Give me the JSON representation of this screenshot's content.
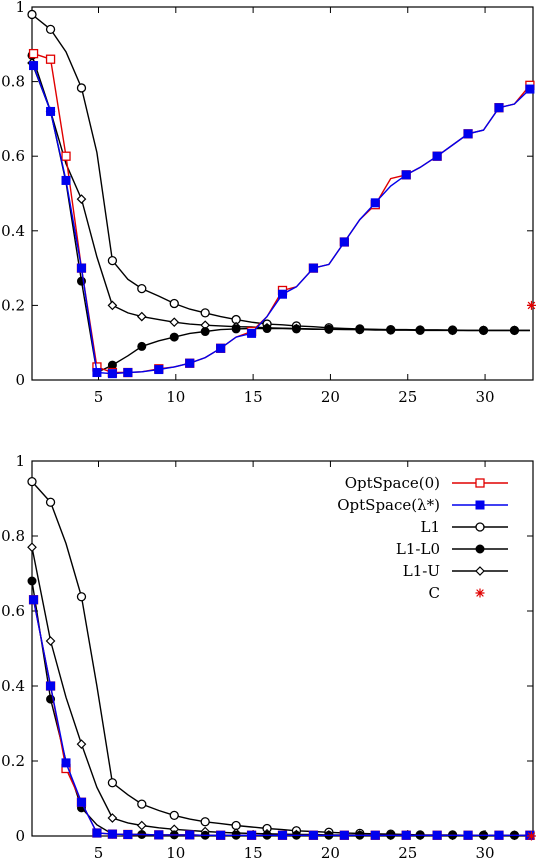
{
  "chart_data": [
    {
      "type": "line",
      "title": "",
      "xlabel": "",
      "ylabel": "",
      "xlim": [
        0.7,
        33.1
      ],
      "ylim": [
        0,
        1
      ],
      "xticks": [
        "5",
        "10",
        "15",
        "20",
        "25",
        "30"
      ],
      "yticks": [
        "0",
        "0.2",
        "0.4",
        "0.6",
        "0.8",
        "1"
      ],
      "legend": false,
      "series": [
        {
          "key": "optspace0",
          "color": "#e00000",
          "marker": "open-square",
          "x": [
            0.8,
            1.9,
            2.9,
            3.9,
            4.9,
            5.9,
            6.9,
            7.8,
            8.9,
            9.9,
            10.9,
            11.9,
            12.9,
            13.9,
            14.9,
            15.9,
            16.9,
            17.8,
            18.9,
            19.9,
            20.9,
            21.9,
            22.9,
            23.9,
            24.9,
            25.8,
            26.9,
            27.9,
            28.9,
            29.9,
            30.9,
            31.9,
            32.9
          ],
          "y": [
            0.875,
            0.86,
            0.6,
            0.3,
            0.035,
            0.02,
            0.02,
            0.022,
            0.03,
            0.035,
            0.045,
            0.06,
            0.085,
            0.115,
            0.13,
            0.17,
            0.24,
            0.25,
            0.3,
            0.31,
            0.37,
            0.43,
            0.47,
            0.54,
            0.55,
            0.57,
            0.6,
            0.63,
            0.66,
            0.67,
            0.73,
            0.74,
            0.79
          ]
        },
        {
          "key": "optspace_lambda",
          "color": "#0000ee",
          "marker": "filled-square",
          "x": [
            0.8,
            1.9,
            2.9,
            3.9,
            4.9,
            5.9,
            6.9,
            7.8,
            8.9,
            9.9,
            10.9,
            11.9,
            12.9,
            13.9,
            14.9,
            15.9,
            16.9,
            17.8,
            18.9,
            19.9,
            20.9,
            21.9,
            22.9,
            23.9,
            24.9,
            25.8,
            26.9,
            27.9,
            28.9,
            29.9,
            30.9,
            31.9,
            32.9
          ],
          "y": [
            0.843,
            0.72,
            0.535,
            0.3,
            0.02,
            0.017,
            0.02,
            0.022,
            0.028,
            0.035,
            0.045,
            0.06,
            0.085,
            0.115,
            0.125,
            0.17,
            0.23,
            0.25,
            0.3,
            0.31,
            0.37,
            0.43,
            0.475,
            0.52,
            0.55,
            0.57,
            0.6,
            0.63,
            0.66,
            0.67,
            0.73,
            0.74,
            0.78
          ]
        },
        {
          "key": "l1",
          "color": "#000000",
          "marker": "open-circle",
          "x": [
            0.7,
            1.9,
            2.9,
            3.9,
            4.9,
            5.9,
            6.9,
            7.8,
            8.9,
            9.9,
            10.9,
            11.9,
            12.9,
            13.9,
            14.9,
            15.9,
            16.9,
            17.8,
            18.9,
            19.9,
            20.9,
            21.9,
            22.9,
            23.9,
            24.9,
            25.8,
            26.9,
            27.9,
            28.9,
            29.9,
            30.9,
            31.9,
            32.9
          ],
          "y": [
            0.98,
            0.94,
            0.88,
            0.783,
            0.61,
            0.32,
            0.27,
            0.245,
            0.225,
            0.205,
            0.19,
            0.18,
            0.17,
            0.162,
            0.155,
            0.15,
            0.148,
            0.145,
            0.143,
            0.14,
            0.138,
            0.137,
            0.136,
            0.135,
            0.135,
            0.134,
            0.134,
            0.134,
            0.133,
            0.133,
            0.133,
            0.133,
            0.133
          ]
        },
        {
          "key": "l1_l0",
          "color": "#000000",
          "marker": "filled-circle",
          "x": [
            0.7,
            1.9,
            2.9,
            3.9,
            4.9,
            5.9,
            6.9,
            7.8,
            8.9,
            9.9,
            10.9,
            11.9,
            12.9,
            13.9,
            14.9,
            15.9,
            16.9,
            17.8,
            18.9,
            19.9,
            20.9,
            21.9,
            22.9,
            23.9,
            24.9,
            25.8,
            26.9,
            27.9,
            28.9,
            29.9,
            30.9,
            31.9,
            32.9
          ],
          "y": [
            0.87,
            0.72,
            0.53,
            0.265,
            0.02,
            0.04,
            0.065,
            0.09,
            0.105,
            0.115,
            0.125,
            0.13,
            0.135,
            0.137,
            0.138,
            0.138,
            0.138,
            0.137,
            0.136,
            0.136,
            0.135,
            0.135,
            0.134,
            0.134,
            0.134,
            0.133,
            0.133,
            0.133,
            0.133,
            0.133,
            0.133,
            0.133,
            0.133
          ]
        },
        {
          "key": "l1_u",
          "color": "#000000",
          "marker": "open-diamond",
          "x": [
            0.7,
            1.9,
            2.9,
            3.9,
            4.9,
            5.9,
            6.9,
            7.8,
            8.9,
            9.9,
            10.9,
            11.9,
            12.9,
            13.9,
            14.9,
            15.9,
            16.9,
            17.8,
            18.9,
            19.9,
            20.9,
            21.9,
            22.9,
            23.9,
            24.9,
            25.8,
            26.9,
            27.9,
            28.9,
            29.9,
            30.9,
            31.9,
            32.9
          ],
          "y": [
            0.85,
            0.72,
            0.58,
            0.485,
            0.33,
            0.2,
            0.18,
            0.17,
            0.162,
            0.155,
            0.15,
            0.147,
            0.145,
            0.143,
            0.142,
            0.14,
            0.139,
            0.138,
            0.137,
            0.136,
            0.136,
            0.135,
            0.135,
            0.134,
            0.134,
            0.134,
            0.134,
            0.133,
            0.133,
            0.133,
            0.133,
            0.133,
            0.133
          ]
        },
        {
          "key": "c",
          "color": "#e00000",
          "marker": "star",
          "x": [
            33.0
          ],
          "y": [
            0.2
          ]
        }
      ]
    },
    {
      "type": "line",
      "title": "",
      "xlabel": "",
      "ylabel": "",
      "xlim": [
        0.7,
        33.1
      ],
      "ylim": [
        0,
        1
      ],
      "xticks": [
        "5",
        "10",
        "15",
        "20",
        "25",
        "30"
      ],
      "yticks": [
        "0",
        "0.2",
        "0.4",
        "0.6",
        "0.8",
        "1"
      ],
      "legend": true,
      "legend_position": "top-right",
      "series": [
        {
          "key": "optspace0",
          "name": "OptSpace(0)",
          "color": "#e00000",
          "marker": "open-square",
          "x": [
            0.8,
            1.9,
            2.9,
            3.9,
            4.9,
            5.9,
            6.9,
            7.8,
            8.9,
            9.9,
            10.9,
            11.9,
            12.9,
            13.9,
            14.9,
            15.9,
            16.9,
            17.8,
            18.9,
            19.9,
            20.9,
            21.9,
            22.9,
            23.9,
            24.9,
            25.8,
            26.9,
            27.9,
            28.9,
            29.9,
            30.9,
            31.9,
            32.9
          ],
          "y": [
            0.63,
            0.4,
            0.18,
            0.09,
            0.008,
            0.005,
            0.004,
            0.004,
            0.003,
            0.003,
            0.003,
            0.002,
            0.002,
            0.002,
            0.002,
            0.002,
            0.002,
            0.002,
            0.002,
            0.002,
            0.002,
            0.002,
            0.002,
            0.002,
            0.002,
            0.002,
            0.002,
            0.002,
            0.002,
            0.002,
            0.002,
            0.002,
            0.002
          ]
        },
        {
          "key": "optspace_lambda",
          "name": "OptSpace(λ*)",
          "color": "#0000ee",
          "marker": "filled-square",
          "x": [
            0.8,
            1.9,
            2.9,
            3.9,
            4.9,
            5.9,
            6.9,
            7.8,
            8.9,
            9.9,
            10.9,
            11.9,
            12.9,
            13.9,
            14.9,
            15.9,
            16.9,
            17.8,
            18.9,
            19.9,
            20.9,
            21.9,
            22.9,
            23.9,
            24.9,
            25.8,
            26.9,
            27.9,
            28.9,
            29.9,
            30.9,
            31.9,
            32.9
          ],
          "y": [
            0.63,
            0.4,
            0.195,
            0.09,
            0.008,
            0.005,
            0.004,
            0.004,
            0.003,
            0.003,
            0.003,
            0.002,
            0.002,
            0.002,
            0.002,
            0.002,
            0.002,
            0.002,
            0.002,
            0.002,
            0.002,
            0.002,
            0.002,
            0.002,
            0.002,
            0.002,
            0.002,
            0.002,
            0.002,
            0.002,
            0.002,
            0.002,
            0.002
          ]
        },
        {
          "key": "l1",
          "name": "L1",
          "color": "#000000",
          "marker": "open-circle",
          "x": [
            0.7,
            1.9,
            2.9,
            3.9,
            4.9,
            5.9,
            6.9,
            7.8,
            8.9,
            9.9,
            10.9,
            11.9,
            12.9,
            13.9,
            14.9,
            15.9,
            16.9,
            17.8,
            18.9,
            19.9,
            20.9,
            21.9,
            22.9,
            23.9,
            24.9,
            25.8,
            26.9,
            27.9,
            28.9,
            29.9,
            30.9,
            31.9,
            32.9
          ],
          "y": [
            0.945,
            0.89,
            0.78,
            0.638,
            0.4,
            0.142,
            0.11,
            0.085,
            0.068,
            0.055,
            0.045,
            0.038,
            0.033,
            0.028,
            0.024,
            0.02,
            0.017,
            0.014,
            0.012,
            0.01,
            0.008,
            0.007,
            0.006,
            0.005,
            0.004,
            0.003,
            0.003,
            0.003,
            0.002,
            0.002,
            0.002,
            0.002,
            0.002
          ]
        },
        {
          "key": "l1_l0",
          "name": "L1-L0",
          "color": "#000000",
          "marker": "filled-circle",
          "x": [
            0.7,
            1.9,
            2.9,
            3.9,
            4.9,
            5.9,
            6.9,
            7.8,
            8.9,
            9.9,
            10.9,
            11.9,
            12.9,
            13.9,
            14.9,
            15.9,
            16.9,
            17.8,
            18.9,
            19.9,
            20.9,
            21.9,
            22.9,
            23.9,
            24.9,
            25.8,
            26.9,
            27.9,
            28.9,
            29.9,
            30.9,
            31.9,
            32.9
          ],
          "y": [
            0.68,
            0.365,
            0.2,
            0.075,
            0.03,
            0.005,
            0.004,
            0.004,
            0.003,
            0.003,
            0.003,
            0.002,
            0.002,
            0.002,
            0.002,
            0.002,
            0.002,
            0.002,
            0.002,
            0.002,
            0.002,
            0.002,
            0.002,
            0.002,
            0.002,
            0.002,
            0.002,
            0.002,
            0.002,
            0.002,
            0.002,
            0.002,
            0.002
          ]
        },
        {
          "key": "l1_u",
          "name": "L1-U",
          "color": "#000000",
          "marker": "open-diamond",
          "x": [
            0.7,
            1.9,
            2.9,
            3.9,
            4.9,
            5.9,
            6.9,
            7.8,
            8.9,
            9.9,
            10.9,
            11.9,
            12.9,
            13.9,
            14.9,
            15.9,
            16.9,
            17.8,
            18.9,
            19.9,
            20.9,
            21.9,
            22.9,
            23.9,
            24.9,
            25.8,
            26.9,
            27.9,
            28.9,
            29.9,
            30.9,
            31.9,
            32.9
          ],
          "y": [
            0.77,
            0.52,
            0.37,
            0.245,
            0.13,
            0.048,
            0.035,
            0.028,
            0.022,
            0.018,
            0.015,
            0.012,
            0.01,
            0.008,
            0.007,
            0.006,
            0.005,
            0.004,
            0.004,
            0.003,
            0.003,
            0.003,
            0.003,
            0.002,
            0.002,
            0.002,
            0.002,
            0.002,
            0.002,
            0.002,
            0.002,
            0.002,
            0.002
          ]
        },
        {
          "key": "c",
          "name": "C",
          "color": "#e00000",
          "marker": "star",
          "x": [
            33.0
          ],
          "y": [
            0.0
          ]
        }
      ]
    }
  ]
}
